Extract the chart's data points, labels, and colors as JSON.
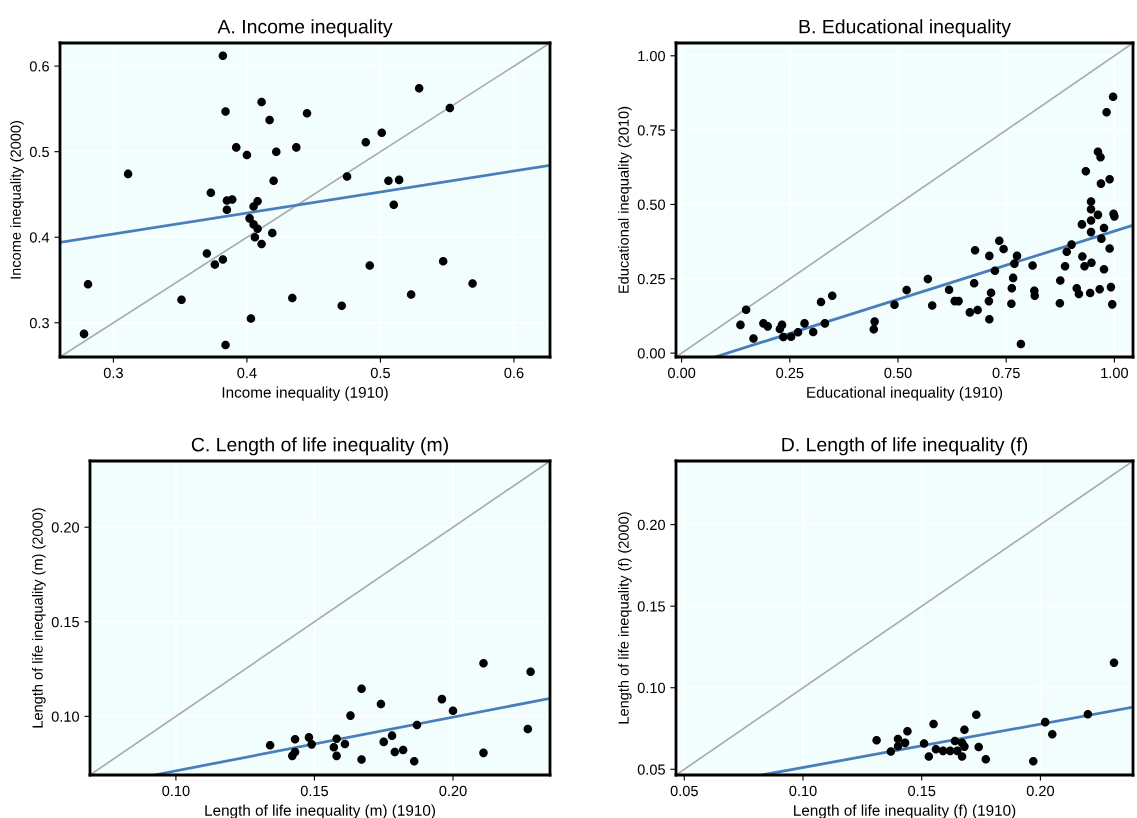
{
  "chart_data": [
    {
      "type": "scatter",
      "title": "A. Income inequality",
      "xlabel": "Income inequality (1910)",
      "ylabel": "Income inequality (2000)",
      "xlim": [
        0.26,
        0.627
      ],
      "ylim": [
        0.26,
        0.627
      ],
      "xticks": [
        0.3,
        0.4,
        0.5,
        0.6
      ],
      "yticks": [
        0.3,
        0.4,
        0.5,
        0.6
      ],
      "grid": true,
      "series": [
        {
          "type": "line",
          "color": "#aaaaaa",
          "x": [
            0.26,
            0.627
          ],
          "values": [
            0.26,
            0.627
          ]
        },
        {
          "type": "line",
          "color": "#4a7ebb",
          "x": [
            0.26,
            0.627
          ],
          "values": [
            0.394,
            0.484
          ]
        },
        {
          "marker": "circle",
          "color": "#000000",
          "x": [
            0.382,
            0.411,
            0.384,
            0.417,
            0.445,
            0.529,
            0.552,
            0.501,
            0.489,
            0.392,
            0.4,
            0.422,
            0.437,
            0.311,
            0.475,
            0.42,
            0.506,
            0.514,
            0.373,
            0.385,
            0.389,
            0.408,
            0.385,
            0.405,
            0.51,
            0.402,
            0.405,
            0.408,
            0.419,
            0.406,
            0.411,
            0.37,
            0.382,
            0.376,
            0.492,
            0.547,
            0.569,
            0.281,
            0.523,
            0.434,
            0.351,
            0.471,
            0.403,
            0.278,
            0.384
          ],
          "values": [
            0.612,
            0.558,
            0.547,
            0.537,
            0.545,
            0.574,
            0.551,
            0.522,
            0.511,
            0.505,
            0.496,
            0.5,
            0.505,
            0.474,
            0.471,
            0.466,
            0.466,
            0.467,
            0.452,
            0.443,
            0.444,
            0.442,
            0.432,
            0.436,
            0.438,
            0.422,
            0.415,
            0.41,
            0.405,
            0.4,
            0.392,
            0.381,
            0.374,
            0.368,
            0.367,
            0.372,
            0.346,
            0.345,
            0.333,
            0.329,
            0.327,
            0.32,
            0.305,
            0.287,
            0.274
          ]
        }
      ]
    },
    {
      "type": "scatter",
      "title": "B. Educational inequality",
      "xlabel": "Educational inequality (1910)",
      "ylabel": "Educational inequality (2010)",
      "xlim": [
        -0.013,
        1.043
      ],
      "ylim": [
        -0.013,
        1.043
      ],
      "xticks": [
        {
          "value": 0,
          "label": "0.00"
        },
        {
          "value": 0.25,
          "label": "0.25"
        },
        {
          "value": 0.5,
          "label": "0.50"
        },
        {
          "value": 0.75,
          "label": "0.75"
        },
        {
          "value": 1,
          "label": "1.00"
        }
      ],
      "yticks": [
        {
          "value": 0,
          "label": "0.00"
        },
        {
          "value": 0.25,
          "label": "0.25"
        },
        {
          "value": 0.5,
          "label": "0.50"
        },
        {
          "value": 0.75,
          "label": "0.75"
        },
        {
          "value": 1,
          "label": "1.00"
        }
      ],
      "grid": true,
      "series": [
        {
          "type": "line",
          "color": "#aaaaaa",
          "x": [
            -0.013,
            1.043
          ],
          "values": [
            -0.013,
            1.043
          ]
        },
        {
          "type": "line",
          "color": "#4a7ebb",
          "x": [
            0.077,
            1.043
          ],
          "values": [
            -0.013,
            0.43
          ]
        },
        {
          "marker": "circle",
          "color": "#000000",
          "x": [
            0.136,
            0.149,
            0.166,
            0.189,
            0.199,
            0.227,
            0.232,
            0.235,
            0.253,
            0.269,
            0.284,
            0.304,
            0.322,
            0.331,
            0.348,
            0.444,
            0.446,
            0.492,
            0.52,
            0.569,
            0.579,
            0.618,
            0.631,
            0.64,
            0.666,
            0.676,
            0.678,
            0.684,
            0.71,
            0.711,
            0.711,
            0.715,
            0.724,
            0.734,
            0.744,
            0.762,
            0.763,
            0.766,
            0.769,
            0.775,
            0.784,
            0.811,
            0.815,
            0.816,
            0.874,
            0.875,
            0.886,
            0.89,
            0.901,
            0.913,
            0.918,
            0.925,
            0.926,
            0.931,
            0.934,
            0.944,
            0.946,
            0.946,
            0.946,
            0.946,
            0.947,
            0.962,
            0.962,
            0.966,
            0.968,
            0.969,
            0.97,
            0.976,
            0.976,
            0.982,
            0.989,
            0.989,
            0.992,
            0.995,
            0.997,
            0.998,
            1.0
          ],
          "values": [
            0.095,
            0.146,
            0.049,
            0.1,
            0.09,
            0.081,
            0.095,
            0.054,
            0.055,
            0.07,
            0.1,
            0.071,
            0.172,
            0.1,
            0.193,
            0.08,
            0.106,
            0.163,
            0.212,
            0.249,
            0.16,
            0.213,
            0.175,
            0.175,
            0.137,
            0.235,
            0.346,
            0.145,
            0.175,
            0.327,
            0.114,
            0.203,
            0.277,
            0.378,
            0.35,
            0.166,
            0.218,
            0.253,
            0.301,
            0.327,
            0.031,
            0.295,
            0.21,
            0.193,
            0.168,
            0.244,
            0.292,
            0.341,
            0.365,
            0.218,
            0.199,
            0.433,
            0.325,
            0.292,
            0.612,
            0.202,
            0.51,
            0.484,
            0.446,
            0.407,
            0.304,
            0.677,
            0.465,
            0.215,
            0.659,
            0.57,
            0.385,
            0.421,
            0.282,
            0.81,
            0.585,
            0.352,
            0.222,
            0.164,
            0.862,
            0.469,
            0.46
          ]
        }
      ]
    },
    {
      "type": "scatter",
      "title": "C. Length of life inequality (m)",
      "xlabel": "Length of life inequality (m) (1910)",
      "ylabel": "Length of life inequality (m) (2000)",
      "xlim": [
        0.069,
        0.235
      ],
      "ylim": [
        0.069,
        0.235
      ],
      "xticks": [
        {
          "value": 0.1,
          "label": "0.10"
        },
        {
          "value": 0.15,
          "label": "0.15"
        },
        {
          "value": 0.2,
          "label": "0.20"
        }
      ],
      "yticks": [
        {
          "value": 0.1,
          "label": "0.10"
        },
        {
          "value": 0.15,
          "label": "0.15"
        },
        {
          "value": 0.2,
          "label": "0.20"
        }
      ],
      "grid": true,
      "series": [
        {
          "type": "line",
          "color": "#aaaaaa",
          "x": [
            0.069,
            0.235
          ],
          "values": [
            0.069,
            0.235
          ]
        },
        {
          "type": "line",
          "color": "#4a7ebb",
          "x": [
            0.0922,
            0.235
          ],
          "values": [
            0.069,
            0.1095
          ]
        },
        {
          "marker": "circle",
          "color": "#000000",
          "x": [
            0.134,
            0.143,
            0.143,
            0.142,
            0.148,
            0.149,
            0.157,
            0.158,
            0.158,
            0.161,
            0.163,
            0.167,
            0.167,
            0.174,
            0.175,
            0.178,
            0.179,
            0.182,
            0.186,
            0.187,
            0.196,
            0.2,
            0.211,
            0.211,
            0.227,
            0.228
          ],
          "values": [
            0.0847,
            0.0879,
            0.0812,
            0.0791,
            0.0889,
            0.0852,
            0.0837,
            0.0882,
            0.0791,
            0.0854,
            0.1004,
            0.1146,
            0.0772,
            0.1065,
            0.0865,
            0.0898,
            0.0812,
            0.0822,
            0.0763,
            0.0954,
            0.1091,
            0.103,
            0.1281,
            0.0807,
            0.0933,
            0.1236
          ]
        }
      ]
    },
    {
      "type": "scatter",
      "title": "D. Length of life inequality (f)",
      "xlabel": "Length of life inequality (f) (1910)",
      "ylabel": "Length of life inequality (f) (2000)",
      "xlim": [
        0.0465,
        0.239
      ],
      "ylim": [
        0.0465,
        0.239
      ],
      "xticks": [
        {
          "value": 0.05,
          "label": "0.05"
        },
        {
          "value": 0.1,
          "label": "0.10"
        },
        {
          "value": 0.15,
          "label": "0.15"
        },
        {
          "value": 0.2,
          "label": "0.20"
        }
      ],
      "yticks": [
        {
          "value": 0.05,
          "label": "0.05"
        },
        {
          "value": 0.1,
          "label": "0.10"
        },
        {
          "value": 0.15,
          "label": "0.15"
        },
        {
          "value": 0.2,
          "label": "0.20"
        }
      ],
      "grid": true,
      "series": [
        {
          "type": "line",
          "color": "#aaaaaa",
          "x": [
            0.0465,
            0.239
          ],
          "values": [
            0.0465,
            0.239
          ]
        },
        {
          "type": "line",
          "color": "#4a7ebb",
          "x": [
            0.0828,
            0.239
          ],
          "values": [
            0.0465,
            0.0881
          ]
        },
        {
          "marker": "circle",
          "color": "#000000",
          "x": [
            0.131,
            0.137,
            0.14,
            0.14,
            0.143,
            0.144,
            0.151,
            0.153,
            0.155,
            0.156,
            0.159,
            0.162,
            0.164,
            0.165,
            0.167,
            0.168,
            0.167,
            0.168,
            0.173,
            0.174,
            0.177,
            0.197,
            0.202,
            0.205,
            0.22,
            0.231
          ],
          "values": [
            0.0678,
            0.0609,
            0.0686,
            0.0641,
            0.0662,
            0.0733,
            0.0658,
            0.0578,
            0.0778,
            0.0623,
            0.0613,
            0.0613,
            0.0674,
            0.0613,
            0.0662,
            0.0639,
            0.0578,
            0.0742,
            0.0834,
            0.0637,
            0.0561,
            0.0549,
            0.0789,
            0.0715,
            0.0838,
            0.1153
          ]
        }
      ]
    }
  ]
}
